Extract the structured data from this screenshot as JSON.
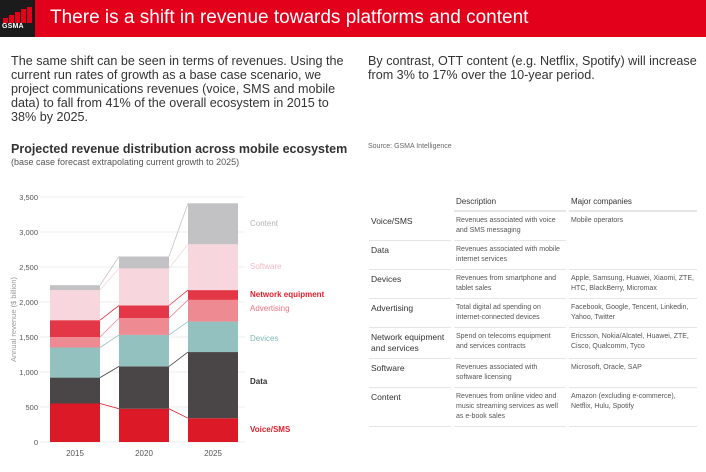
{
  "header": {
    "logo_text": "GSMA",
    "title": "There is a shift in revenue towards platforms and content"
  },
  "intro_left": "The same shift can be seen in terms of revenues. Using the current run rates of growth as a base case scenario, we project communications revenues (voice, SMS and mobile data) to fall from 41% of the overall ecosystem in 2015 to 38% by 2025.",
  "intro_right": "By contrast, OTT content (e.g. Netflix, Spotify) will increase from 3% to 17% over the 10-year period.",
  "source": "Source: GSMA Intelligence",
  "chart_data": {
    "type": "bar",
    "stacked": true,
    "title": "Projected revenue distribution across mobile ecosystem",
    "subtitle": "(base case forecast extrapolating current growth to 2025)",
    "ylabel": "Annual revenue ($ billion)",
    "xlabel": "",
    "ylim": [
      0,
      3500
    ],
    "yticks": [
      0,
      500,
      1000,
      1500,
      2000,
      2500,
      3000,
      3500
    ],
    "ytick_labels": [
      "0",
      "500",
      "1,000",
      "1,500",
      "2,000",
      "2,500",
      "3,000",
      "3,500"
    ],
    "categories": [
      "2015",
      "2020",
      "2025"
    ],
    "legend_placement": "right",
    "series": [
      {
        "name": "Voice/SMS",
        "color": "#dc1a27",
        "label_color": "#e0202e",
        "values": [
          550,
          475,
          340
        ]
      },
      {
        "name": "Data",
        "color": "#4a4546",
        "label_color": "#333333",
        "values": [
          370,
          605,
          945
        ]
      },
      {
        "name": "Devices",
        "color": "#93c1bf",
        "label_color": "#7fb9b6",
        "values": [
          430,
          450,
          435
        ]
      },
      {
        "name": "Advertising",
        "color": "#ee8a91",
        "label_color": "#ee7380",
        "values": [
          150,
          240,
          310
        ]
      },
      {
        "name": "Network equipment",
        "color": "#e33646",
        "label_color": "#e0202e",
        "values": [
          240,
          180,
          140
        ]
      },
      {
        "name": "Software",
        "color": "#f7d7dd",
        "label_color": "#f3b9c4",
        "values": [
          430,
          530,
          655
        ]
      },
      {
        "name": "Content",
        "color": "#c2c2c4",
        "label_color": "#b5b5b8",
        "values": [
          70,
          170,
          585
        ]
      }
    ]
  },
  "table": {
    "headers": [
      "",
      "Description",
      "Major companies"
    ],
    "rows": [
      {
        "category": "Voice/SMS",
        "description": "Revenues associated with voice and SMS messaging",
        "companies": "Mobile operators"
      },
      {
        "category": "Data",
        "description": "Revenues associated with mobile internet services",
        "companies": ""
      },
      {
        "category": "Devices",
        "description": "Revenues from smartphone and tablet sales",
        "companies": "Apple, Samsung, Huawei, Xiaomi, ZTE, HTC, BlackBerry, Micromax"
      },
      {
        "category": "Advertising",
        "description": "Total digital ad spending on internet-connected devices",
        "companies": "Facebook, Google, Tencent, Linkedin, Yahoo, Twitter"
      },
      {
        "category": "Network equipment and services",
        "description": "Spend on telecoms equipment and services contracts",
        "companies": "Ericsson, Nokia/Alcatel, Huawei, ZTE, Cisco, Qualcomm, Tyco"
      },
      {
        "category": "Software",
        "description": "Revenues associated with software licensing",
        "companies": "Microsoft, Oracle, SAP"
      },
      {
        "category": "Content",
        "description": "Revenues from online video and music streaming services as well as e-book sales",
        "companies": "Amazon (excluding e-commerce), Netflix, Hulu, Spotify"
      }
    ]
  }
}
